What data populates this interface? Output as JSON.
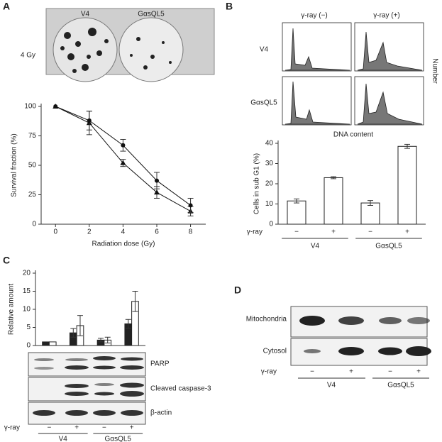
{
  "panels": {
    "a": "A",
    "b": "B",
    "c": "C",
    "d": "D"
  },
  "panel_a": {
    "columns": [
      "V4",
      "GαsQL5"
    ],
    "row": "4 Gy"
  },
  "panel_b": {
    "columns": [
      "γ-ray (−)",
      "γ-ray (+)"
    ],
    "rows": [
      "V4",
      "GαsQL5"
    ],
    "x_label": "DNA content",
    "y_label": "Number"
  },
  "panel_c": {
    "blots": [
      "PARP",
      "Cleaved caspase-3",
      "β-actin"
    ]
  },
  "panel_d": {
    "blots": [
      "Mitochondria",
      "Cytosol"
    ],
    "row_label": "γ-ray",
    "lanes": [
      "−",
      "+",
      "−",
      "+"
    ],
    "groups": [
      "V4",
      "GαsQL5"
    ]
  },
  "chart_data": [
    {
      "type": "line",
      "x": [
        0,
        2,
        4,
        6,
        8
      ],
      "x_label": "Radiation dose (Gy)",
      "y_label": "Survival fraction (%)",
      "xlim": [
        -0.85,
        8.9
      ],
      "xticks": [
        0,
        2,
        4,
        6,
        8
      ],
      "ylim": [
        0,
        100
      ],
      "yticks": [
        0,
        25,
        50,
        75,
        100
      ],
      "series": [
        {
          "color": "#111111",
          "marker": "triangle",
          "values": [
            100,
            86,
            52,
            27,
            11
          ],
          "errors": [
            0,
            10,
            3,
            5,
            4
          ]
        },
        {
          "color": "#111111",
          "marker": "circle",
          "values": [
            100,
            88,
            67,
            37,
            16
          ],
          "errors": [
            0,
            8,
            5,
            7,
            6
          ]
        }
      ]
    },
    {
      "type": "bar",
      "categories": [
        "−",
        "+",
        "−",
        "+"
      ],
      "category_label": "γ-ray",
      "groups": [
        "V4",
        "GαsQL5"
      ],
      "y_label": "Cells in sub G1 (%)",
      "ylim": [
        0,
        40
      ],
      "yticks": [
        0,
        10,
        20,
        30,
        40
      ],
      "color": "#ffffff",
      "values": [
        11.5,
        23,
        10.5,
        38.5
      ],
      "errors": [
        1,
        0.5,
        1.2,
        1
      ]
    },
    {
      "type": "bar",
      "categories": [
        "−",
        "+",
        "−",
        "+"
      ],
      "category_label": "γ-ray",
      "groups": [
        "V4",
        "GαsQL5"
      ],
      "y_label": "Relative amount",
      "ylim": [
        0,
        20
      ],
      "yticks": [
        0,
        5,
        10,
        15,
        20
      ],
      "series": [
        {
          "color": "#222222",
          "values": [
            1,
            3.5,
            1.5,
            6
          ],
          "errors": [
            0,
            1.2,
            0.5,
            1.2
          ]
        },
        {
          "color": "#ffffff",
          "values": [
            1,
            5.5,
            1.5,
            12.2
          ],
          "errors": [
            0,
            2.8,
            0.8,
            2.8
          ]
        }
      ]
    }
  ]
}
